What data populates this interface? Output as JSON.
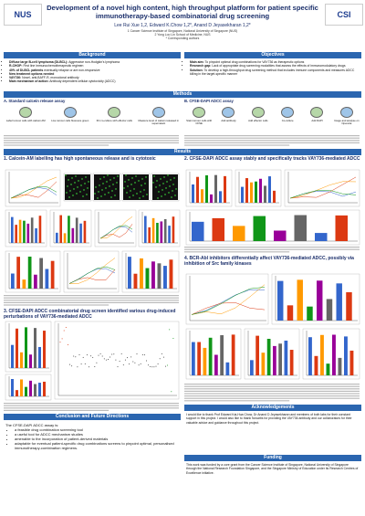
{
  "header": {
    "title": "Development of a novel high content, high throughput platform for patient specific immunotherapy-based combinatorial drug screening",
    "authors": "Lee Rui Xue 1,2, Edward K.Chow 1,2*, Anand D Jeyasekharan 1,2*",
    "affiliations": [
      "1 Cancer Science Institute of Singapore, National University of Singapore (NUS)",
      "2 Yong Loo Lin School of Medicine, NUS",
      "* Corresponding authors"
    ],
    "logo_left": "NUS",
    "logo_right": "CSI"
  },
  "background": {
    "heading": "Background",
    "items": [
      {
        "term": "Diffuse large B-cell lymphoma (DLBCL):",
        "text": "Aggressive non-Hodgkin's lymphoma"
      },
      {
        "term": "R-CHOP:",
        "text": "First line immunochemotherapeutic regimen"
      },
      {
        "term": "40% of DLBCL patients",
        "text": "eventually relapse or are non-responsive"
      },
      {
        "term": "New treatment options needed",
        "text": ""
      },
      {
        "term": "VAY736:",
        "text": "Novel, anti-BAFF-R, monoclonal antibody"
      },
      {
        "term": "Main mechanism of action:",
        "text": "Antibody dependent cellular cytotoxicity (ADCC)"
      }
    ]
  },
  "objectives": {
    "heading": "Objectives",
    "items": [
      {
        "term": "Main aim:",
        "text": "To pinpoint optimal drug combinations for VAY736 as therapeutic options"
      },
      {
        "term": "Research gap:",
        "text": "Lack of appropriate drug screening modalities that assess the effects of immunomodulatory drugs"
      },
      {
        "term": "Solution:",
        "text": "To develop a high-throughput drug screening method that includes immune components and measures ADCC killing in the target-specific manner"
      }
    ]
  },
  "methods": {
    "heading": "Methods",
    "a": {
      "title": "A. Standard calcein release assay",
      "steps": [
        "Label tumour cells with calcein AM",
        "Live tumour cells fluoresce green",
        "3hr co-culture with effector cells",
        "Measure level of calcein released in supernatant"
      ]
    },
    "b": {
      "title": "B. CFSE-DAPI ADCC assay",
      "steps": [
        "Stain tumour cells with CFSE",
        "Add antibody",
        "Add effector cells",
        "Co-culture",
        "Add DAPI",
        "Image and analyse on Operetta"
      ]
    }
  },
  "results": {
    "heading": "Results",
    "panels": [
      "1. Calcein-AM labelling has high spontaneous release and is cytotoxic",
      "2. CFSE-DAPI ADCC assay stably and specifically tracks VAY736-mediated ADCC",
      "3. CFSE-DAPI ADCC combinatorial drug screen identified various drug-induced perturbations of VAY736-mediated ADCC",
      "4. BCR-Abl inhibitors differentially affect VAY736-mediated ADCC, possibly via inhibition of Src family kinases"
    ]
  },
  "conclusion": {
    "heading": "Conclusion and Future Directions",
    "intro": "The CFSE-DAPI ADCC assay is:",
    "items": [
      "a feasible drug combination screening tool",
      "a useful tool for ADCC mechanism studies",
      "amenable to the incorporation of patient-derived materials",
      "adaptable for eventual patient-specific drug combinations screens to pinpoint optimal, personalised immunotherapy-combination regimens."
    ]
  },
  "acknowledgements": {
    "heading": "Acknowledgements",
    "text": "I would like to thank Prof Edward Kai-Hua Chow, Dr Anand D Jeyasekharan and members of both labs for their constant support in this project. I would also like to thank Novartis for providing the VAY736 antibody and our collaborators for their valuable advice and guidance throughout this project."
  },
  "funding": {
    "heading": "Funding",
    "text": "This work was funded by a core grant from the Cancer Science Institute of Singapore, National University of Singapore through the National Research Foundation Singapore, and the Singapore Ministry of Education under its Research Centres of Excellence initiative."
  }
}
